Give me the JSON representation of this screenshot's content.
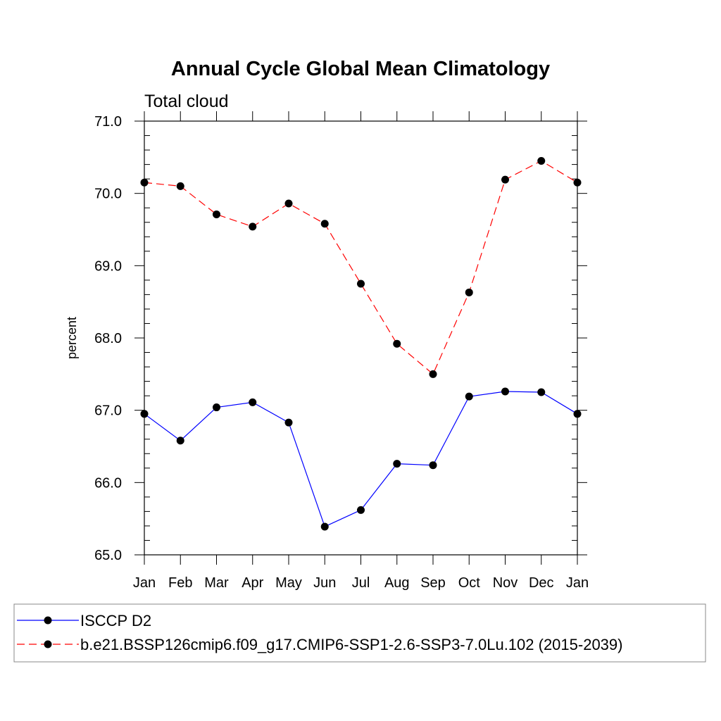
{
  "chart_data": {
    "type": "line",
    "title": "Annual Cycle Global Mean Climatology",
    "subtitle": "Total cloud",
    "xlabel": "",
    "ylabel": "percent",
    "categories": [
      "Jan",
      "Feb",
      "Mar",
      "Apr",
      "May",
      "Jun",
      "Jul",
      "Aug",
      "Sep",
      "Oct",
      "Nov",
      "Dec",
      "Jan"
    ],
    "ylim": [
      65.0,
      71.0
    ],
    "yticks": [
      "65.0",
      "66.0",
      "67.0",
      "68.0",
      "69.0",
      "70.0",
      "71.0"
    ],
    "grid": false,
    "legend_position": "bottom",
    "series": [
      {
        "name": "ISCCP D2",
        "color": "#0000ff",
        "line_style": "solid",
        "marker": "filled-circle",
        "values": [
          66.95,
          66.58,
          67.04,
          67.11,
          66.83,
          65.39,
          65.62,
          66.26,
          66.24,
          67.19,
          67.26,
          67.25,
          66.95
        ]
      },
      {
        "name": "b.e21.BSSP126cmip6.f09_g17.CMIP6-SSP1-2.6-SSP3-7.0Lu.102 (2015-2039)",
        "color": "#ff0000",
        "line_style": "dashed",
        "marker": "filled-circle",
        "values": [
          70.15,
          70.1,
          69.71,
          69.54,
          69.86,
          69.58,
          68.75,
          67.92,
          67.5,
          68.63,
          70.19,
          70.45,
          70.15
        ]
      }
    ]
  }
}
